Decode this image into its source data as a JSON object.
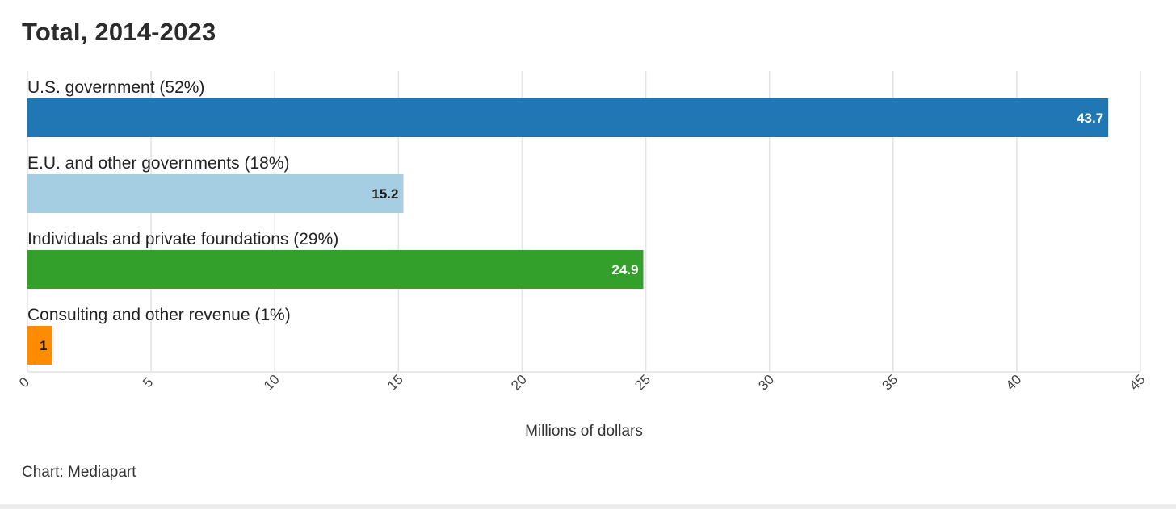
{
  "chart_data": {
    "type": "bar",
    "orientation": "horizontal",
    "title": "Total, 2014-2023",
    "categories": [
      "U.S. government (52%)",
      "E.U. and other governments (18%)",
      "Individuals and private foundations (29%)",
      "Consulting and other revenue (1%)"
    ],
    "values": [
      43.7,
      15.2,
      24.9,
      1
    ],
    "value_labels": [
      "43.7",
      "15.2",
      "24.9",
      "1"
    ],
    "colors": [
      "#2077b4",
      "#a6cee3",
      "#33a02c",
      "#ff8c00"
    ],
    "label_colors": [
      "#ffffff",
      "#1a1a1a",
      "#ffffff",
      "#1a1a1a"
    ],
    "xlabel": "Millions of dollars",
    "ylabel": "",
    "xlim": [
      0,
      45
    ],
    "xticks": [
      0,
      5,
      10,
      15,
      20,
      25,
      30,
      35,
      40,
      45
    ],
    "xtick_labels": [
      "0",
      "5",
      "10",
      "15",
      "20",
      "25",
      "30",
      "35",
      "40",
      "45"
    ],
    "grid": true,
    "legend": "none"
  },
  "source": "Chart: Mediapart"
}
